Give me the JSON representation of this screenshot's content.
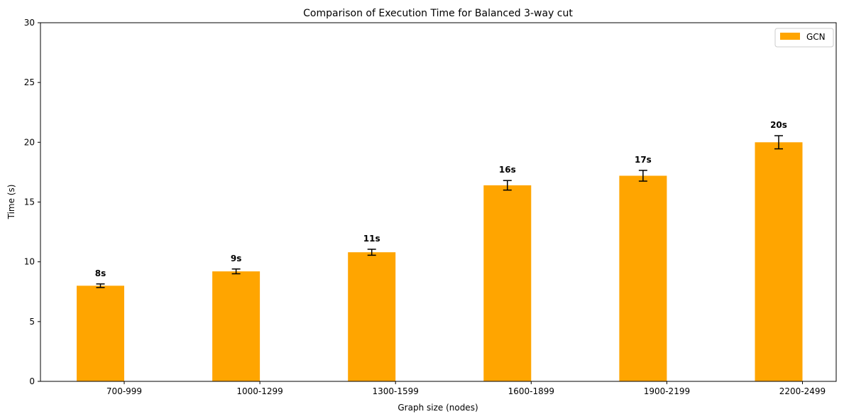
{
  "chart_data": {
    "type": "bar",
    "title": "Comparison of Execution Time for Balanced 3-way cut",
    "xlabel": "Graph size (nodes)",
    "ylabel": "Time (s)",
    "ylim": [
      0,
      30
    ],
    "yticks": [
      0,
      5,
      10,
      15,
      20,
      25,
      30
    ],
    "categories": [
      "700-999",
      "1000-1299",
      "1300-1599",
      "1600-1899",
      "1900-2199",
      "2200-2499"
    ],
    "series": [
      {
        "name": "GCN",
        "color": "#FFA500",
        "values": [
          8.0,
          9.2,
          10.8,
          16.4,
          17.2,
          20.0
        ],
        "errors": [
          0.15,
          0.2,
          0.25,
          0.4,
          0.45,
          0.55
        ],
        "value_labels": [
          "8s",
          "9s",
          "11s",
          "16s",
          "17s",
          "20s"
        ]
      }
    ],
    "legend_position": "top-right",
    "grid": false
  }
}
